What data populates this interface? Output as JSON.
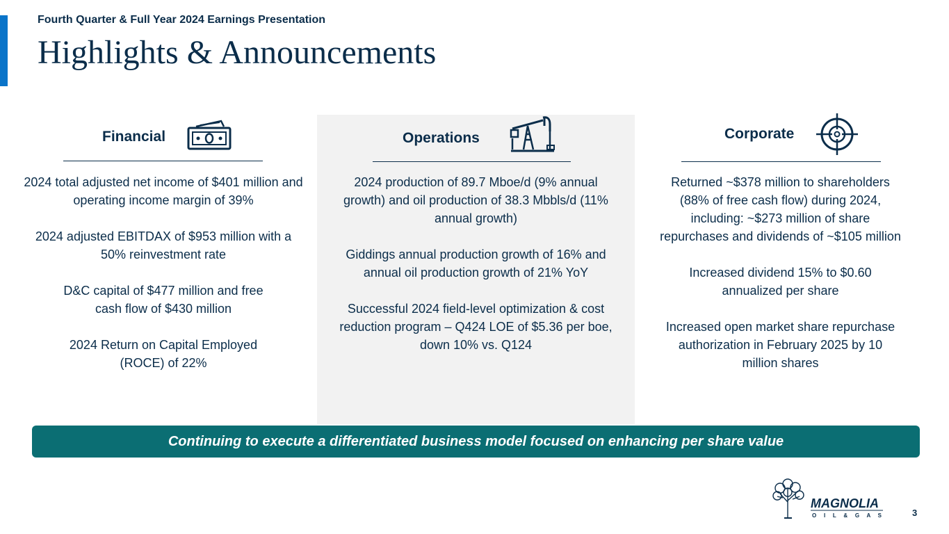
{
  "header": {
    "subtitle": "Fourth Quarter & Full Year 2024 Earnings Presentation",
    "title": "Highlights & Announcements"
  },
  "columns": {
    "financial": {
      "label": "Financial",
      "icon": "money-bill-icon",
      "items": [
        "2024 total adjusted net income of $401 million and operating income margin of 39%",
        "2024 adjusted EBITDAX of $953 million with a 50% reinvestment rate",
        "D&C capital of $477 million and free cash flow of $430 million",
        "2024 Return on Capital Employed (ROCE) of 22%"
      ]
    },
    "operations": {
      "label": "Operations",
      "icon": "oil-pump-icon",
      "items": [
        "2024 production of 89.7 Mboe/d (9% annual growth) and oil production of 38.3 Mbbls/d (11% annual growth)",
        "Giddings annual production growth of 16% and annual oil production growth of 21% YoY",
        "Successful 2024 field-level optimization & cost reduction program – Q424 LOE of $5.36 per boe, down 10% vs. Q124"
      ]
    },
    "corporate": {
      "label": "Corporate",
      "icon": "target-icon",
      "items": [
        "Returned ~$378 million to shareholders (88% of free cash flow) during 2024, including: ~$273 million of share repurchases and dividends of ~$105 million",
        "Increased dividend 15% to $0.60 annualized per share",
        "Increased open market share repurchase authorization in February 2025 by 10 million shares"
      ]
    }
  },
  "banner": "Continuing to execute a differentiated business model focused on enhancing per share value",
  "logo": {
    "name": "MAGNOLIA",
    "tagline": "O I L & G A S"
  },
  "page_number": "3",
  "colors": {
    "navy": "#0b2d4a",
    "accent_blue": "#0a74c9",
    "teal": "#0b6e73",
    "panel_gray": "#f2f2f2"
  }
}
